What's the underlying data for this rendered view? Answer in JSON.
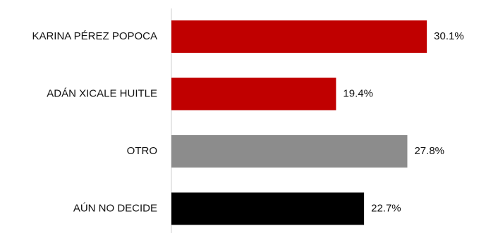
{
  "chart_data": {
    "type": "bar",
    "orientation": "horizontal",
    "categories": [
      "KARINA PÉREZ POPOCA",
      "ADÁN XICALE HUITLE",
      "OTRO",
      "AÚN NO DECIDE"
    ],
    "values": [
      30.1,
      19.4,
      27.8,
      22.7
    ],
    "value_labels": [
      "30.1%",
      "19.4%",
      "27.8%",
      "22.7%"
    ],
    "colors": [
      "#c00000",
      "#c00000",
      "#8c8c8c",
      "#000000"
    ],
    "xlim": [
      0,
      32
    ],
    "title": "",
    "xlabel": "",
    "ylabel": "",
    "grid": false,
    "legend": "none"
  }
}
